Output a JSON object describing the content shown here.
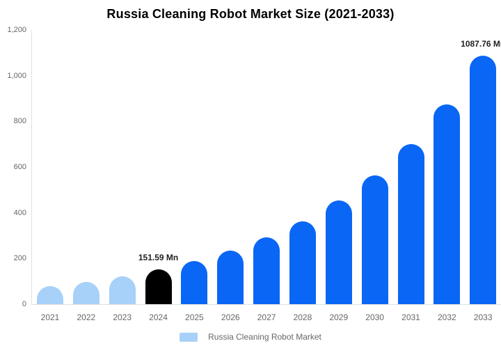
{
  "title": "Russia Cleaning Robot Market Size (2021-2033)",
  "chart_data": {
    "type": "bar",
    "title": "Russia Cleaning Robot Market Size (2021-2033)",
    "categories": [
      "2021",
      "2022",
      "2023",
      "2024",
      "2025",
      "2026",
      "2027",
      "2028",
      "2029",
      "2030",
      "2031",
      "2032",
      "2033"
    ],
    "values": [
      78.6,
      97.8,
      121.8,
      151.59,
      188.7,
      234.9,
      292.4,
      364.0,
      453.0,
      563.9,
      702.0,
      873.8,
      1087.76
    ],
    "unit": "Mn",
    "xlabel": "",
    "ylabel": "",
    "ylim": [
      0,
      1200
    ],
    "ytick_labels": [
      "0",
      "200",
      "400",
      "600",
      "800",
      "1,000",
      "1,200"
    ],
    "grid": "off",
    "legend_position": "bottom",
    "legend": {
      "label": "Russia Cleaning Robot Market"
    },
    "bar_colors": [
      "#a7d1f8",
      "#a7d1f8",
      "#a7d1f8",
      "#000000",
      "#0a66f5",
      "#0a66f5",
      "#0a66f5",
      "#0a66f5",
      "#0a66f5",
      "#0a66f5",
      "#0a66f5",
      "#0a66f5",
      "#0a66f5"
    ],
    "colors": {
      "historic": "#a7d1f8",
      "base_year": "#000000",
      "forecast": "#0a66f5",
      "axis_line": "#e0e0e0",
      "axis_text": "#666666",
      "value_label": "#1f1f1f"
    },
    "annotations": [
      {
        "category": "2024",
        "text": "151.59 Mn"
      },
      {
        "category": "2033",
        "text": "1087.76 Mn"
      }
    ]
  }
}
